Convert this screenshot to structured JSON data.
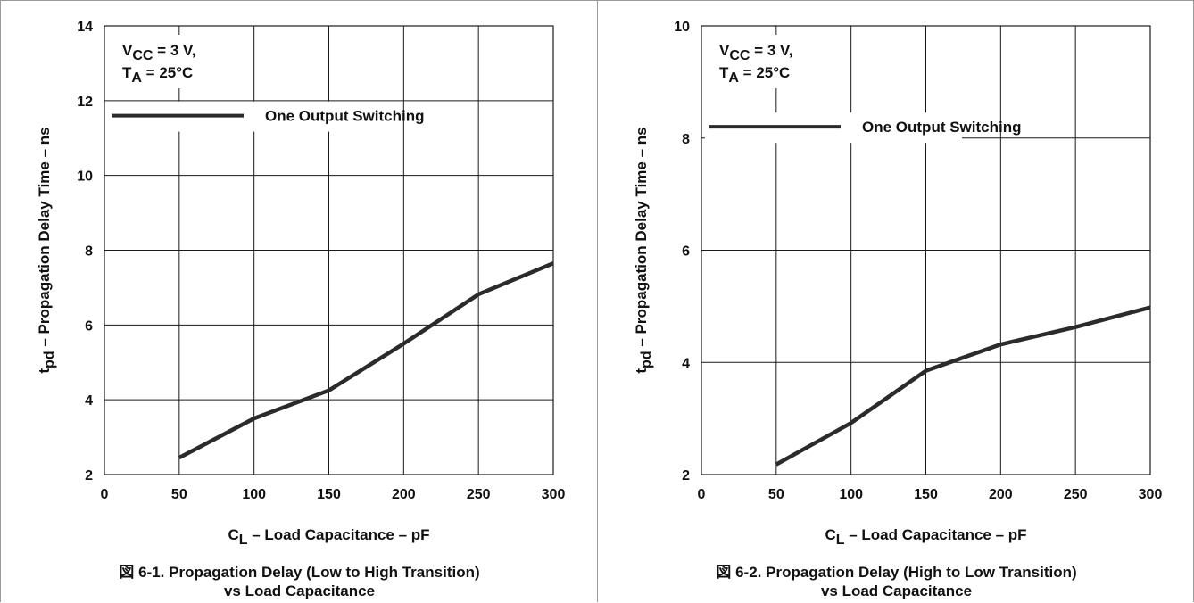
{
  "chart_data": [
    {
      "type": "line",
      "figure_number": "図 6-1.",
      "title": "Propagation Delay (Low to High Transition)",
      "title_line2": "vs Load Capacitance",
      "xlabel": "C",
      "xlabel_sub": "L",
      "xlabel_rest": " – Load Capacitance – pF",
      "ylabel": "t",
      "ylabel_sub": "pd",
      "ylabel_rest": " – Propagation Delay Time – ns",
      "xlim": [
        0,
        300
      ],
      "ylim": [
        2,
        14
      ],
      "x_ticks": [
        0,
        50,
        100,
        150,
        200,
        250,
        300
      ],
      "y_ticks": [
        2,
        4,
        6,
        8,
        10,
        12,
        14
      ],
      "grid": true,
      "conditions_line1": "V",
      "conditions_line1_sub": "CC",
      "conditions_line1_rest": " = 3 V,",
      "conditions_line2": "T",
      "conditions_line2_sub": "A",
      "conditions_line2_rest": " = 25°C",
      "series": [
        {
          "name": "One Output Switching",
          "x": [
            50,
            100,
            150,
            200,
            250,
            300
          ],
          "values": [
            2.45,
            3.5,
            4.25,
            5.5,
            6.82,
            7.65
          ]
        }
      ]
    },
    {
      "type": "line",
      "figure_number": "図 6-2.",
      "title": "Propagation Delay (High to Low Transition)",
      "title_line2": "vs Load Capacitance",
      "xlabel": "C",
      "xlabel_sub": "L",
      "xlabel_rest": " – Load Capacitance – pF",
      "ylabel": "t",
      "ylabel_sub": "pd",
      "ylabel_rest": " – Propagation Delay Time – ns",
      "xlim": [
        0,
        300
      ],
      "ylim": [
        2,
        10
      ],
      "x_ticks": [
        0,
        50,
        100,
        150,
        200,
        250,
        300
      ],
      "y_ticks": [
        2,
        4,
        6,
        8,
        10
      ],
      "grid": true,
      "conditions_line1": "V",
      "conditions_line1_sub": "CC",
      "conditions_line1_rest": " = 3 V,",
      "conditions_line2": "T",
      "conditions_line2_sub": "A",
      "conditions_line2_rest": " = 25°C",
      "series": [
        {
          "name": "One Output Switching",
          "x": [
            50,
            100,
            150,
            200,
            250,
            300
          ],
          "values": [
            2.18,
            2.92,
            3.85,
            4.32,
            4.63,
            4.98
          ]
        }
      ]
    }
  ],
  "colors": {
    "line": "#2b2b2b",
    "grid": "#1a1a1a",
    "text": "#111111"
  }
}
